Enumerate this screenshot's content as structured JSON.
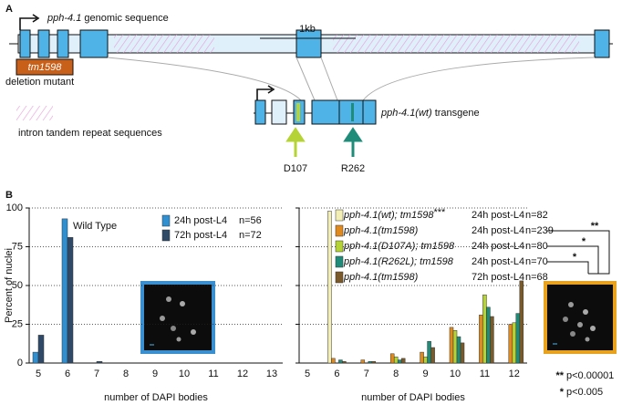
{
  "panel_a": {
    "label": "A",
    "gene_title": "pph-4.1",
    "gene_title_rest": "genomic sequence",
    "scale": "1kb",
    "allele": "tm1598",
    "allele_desc": "deletion mutant",
    "repeat_desc": "intron tandem repeat sequences",
    "transgene": "pph-4.1(wt)",
    "transgene_rest": "transgene",
    "site1": "D107",
    "site2": "R262"
  },
  "panel_b": {
    "label": "B",
    "significance": [
      "**",
      "*",
      "*"
    ],
    "footnotes": [
      {
        "mark": "**",
        "text": "p<0.00001"
      },
      {
        "mark": "*",
        "text": "p<0.005"
      }
    ]
  },
  "chart_data": [
    {
      "type": "bar",
      "ylabel": "Percent of nuclei",
      "xlabel": "number of DAPI bodies",
      "annotation": "Wild Type",
      "categories": [
        "5",
        "6",
        "7",
        "8",
        "9",
        "10",
        "11",
        "12",
        "13"
      ],
      "ylim": [
        0,
        100
      ],
      "yticks": [
        0,
        25,
        50,
        75,
        100
      ],
      "grid": true,
      "ytick_labels": true,
      "series": [
        {
          "name": "24h post-L4",
          "n": "n=56",
          "color": "#2f8fd0",
          "values": [
            7,
            93,
            0,
            0,
            0,
            0,
            0,
            0,
            0
          ]
        },
        {
          "name": "72h post-L4",
          "n": "n=72",
          "color": "#2f4a66",
          "values": [
            18,
            81,
            1,
            0,
            0,
            0,
            0,
            0,
            0
          ]
        }
      ]
    },
    {
      "type": "bar",
      "xlabel": "number of DAPI bodies",
      "categories": [
        "5",
        "6",
        "7",
        "8",
        "9",
        "10",
        "11",
        "12"
      ],
      "ylim": [
        0,
        100
      ],
      "yticks": [
        0,
        25,
        50,
        75,
        100
      ],
      "grid": true,
      "ytick_labels": false,
      "series": [
        {
          "name": "pph-4.1(wt); tm1598",
          "marker": "***",
          "timepoint": "24h post-L4",
          "n": "n=82",
          "color": "#f3efb4",
          "values": [
            0,
            98,
            0,
            0,
            0,
            0,
            0,
            0
          ]
        },
        {
          "name": "pph-4.1(tm1598)",
          "timepoint": "24h post-L4",
          "n": "n=239",
          "color": "#e08a1e",
          "values": [
            0,
            3,
            2,
            6,
            7,
            23,
            31,
            25
          ]
        },
        {
          "name": "pph-4.1(D107A); tm1598",
          "timepoint": "24h post-L4",
          "n": "n=80",
          "color": "#b5d334",
          "values": [
            0,
            0,
            0,
            4,
            4,
            21,
            44,
            26
          ]
        },
        {
          "name": "pph-4.1(R262L); tm1598",
          "timepoint": "24h post-L4",
          "n": "n=70",
          "color": "#1f8c7a",
          "values": [
            0,
            2,
            1,
            2,
            14,
            17,
            36,
            32
          ]
        },
        {
          "name": "pph-4.1(tm1598)",
          "timepoint": "72h post-L4",
          "n": "n=68",
          "color": "#7a5a2a",
          "values": [
            0,
            1,
            1,
            3,
            10,
            13,
            30,
            53
          ]
        }
      ]
    }
  ]
}
